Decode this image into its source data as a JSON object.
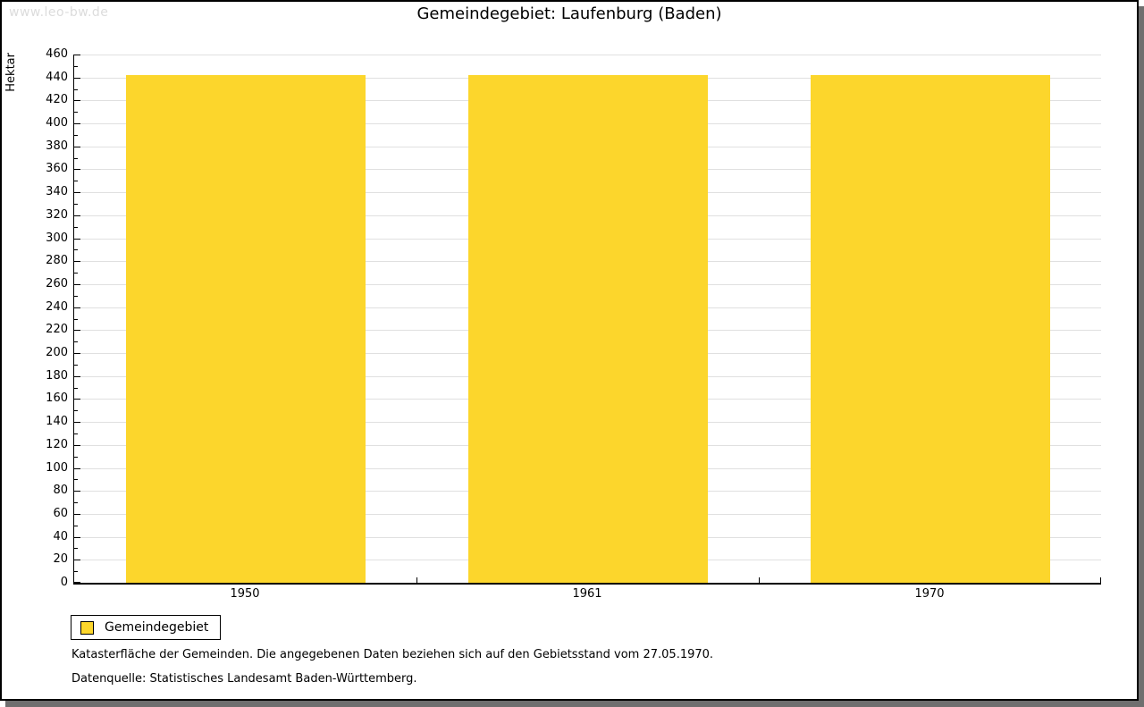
{
  "watermark": "www.leo-bw.de",
  "chart_data": {
    "type": "bar",
    "title": "Gemeindegebiet: Laufenburg (Baden)",
    "ylabel": "Hektar",
    "xlabel": "",
    "categories": [
      "1950",
      "1961",
      "1970"
    ],
    "series": [
      {
        "name": "Gemeindegebiet",
        "values": [
          442,
          442,
          442
        ]
      }
    ],
    "ylim": [
      0,
      460
    ],
    "y_major_step": 20,
    "y_minor_step": 10,
    "grid": "horizontal",
    "gridline_color": "#e0e0e0",
    "bar_color": "#fcd62c",
    "legend_position": "bottom-left"
  },
  "legend": {
    "items": [
      {
        "label": "Gemeindegebiet",
        "color": "#fcd62c"
      }
    ]
  },
  "notes": [
    "Katasterfläche der Gemeinden. Die angegebenen Daten beziehen sich auf den Gebietsstand vom 27.05.1970.",
    "Datenquelle: Statistisches Landesamt Baden-Württemberg."
  ]
}
